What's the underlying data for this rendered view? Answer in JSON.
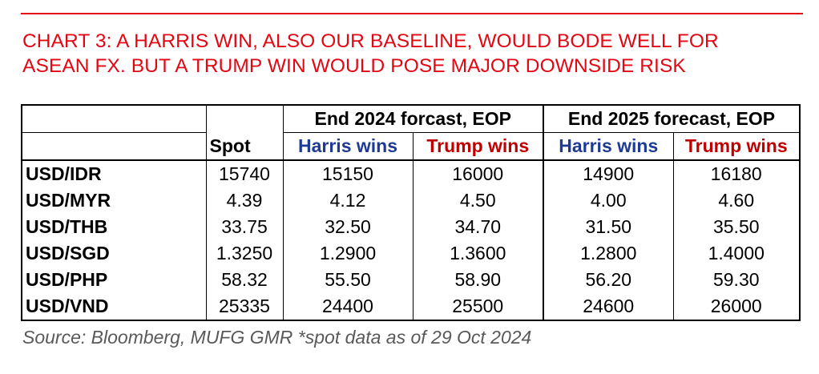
{
  "title_lines": [
    "CHART 3: A HARRIS WIN, ALSO OUR BASELINE, WOULD BODE WELL FOR",
    "ASEAN FX. BUT A TRUMP WIN WOULD POSE MAJOR DOWNSIDE RISK"
  ],
  "colors": {
    "title": "#e30613",
    "harris": "#1f3a93",
    "trump": "#c00000",
    "source": "#595959"
  },
  "chart_data": {
    "type": "table",
    "group_headers": [
      "End 2024 forcast, EOP",
      "End 2025 forecast, EOP"
    ],
    "column_headers": [
      "Spot",
      "Harris wins",
      "Trump wins",
      "Harris wins",
      "Trump wins"
    ],
    "rows": [
      {
        "pair": "USD/IDR",
        "values": [
          "15740",
          "15150",
          "16000",
          "14900",
          "16180"
        ]
      },
      {
        "pair": "USD/MYR",
        "values": [
          "4.39",
          "4.12",
          "4.50",
          "4.00",
          "4.60"
        ]
      },
      {
        "pair": "USD/THB",
        "values": [
          "33.75",
          "32.50",
          "34.70",
          "31.50",
          "35.50"
        ]
      },
      {
        "pair": "USD/SGD",
        "values": [
          "1.3250",
          "1.2900",
          "1.3600",
          "1.2800",
          "1.4000"
        ]
      },
      {
        "pair": "USD/PHP",
        "values": [
          "58.32",
          "55.50",
          "58.90",
          "56.20",
          "59.30"
        ]
      },
      {
        "pair": "USD/VND",
        "values": [
          "25335",
          "24400",
          "25500",
          "24600",
          "26000"
        ]
      }
    ]
  },
  "source": "Source: Bloomberg, MUFG GMR *spot data as of 29 Oct 2024"
}
